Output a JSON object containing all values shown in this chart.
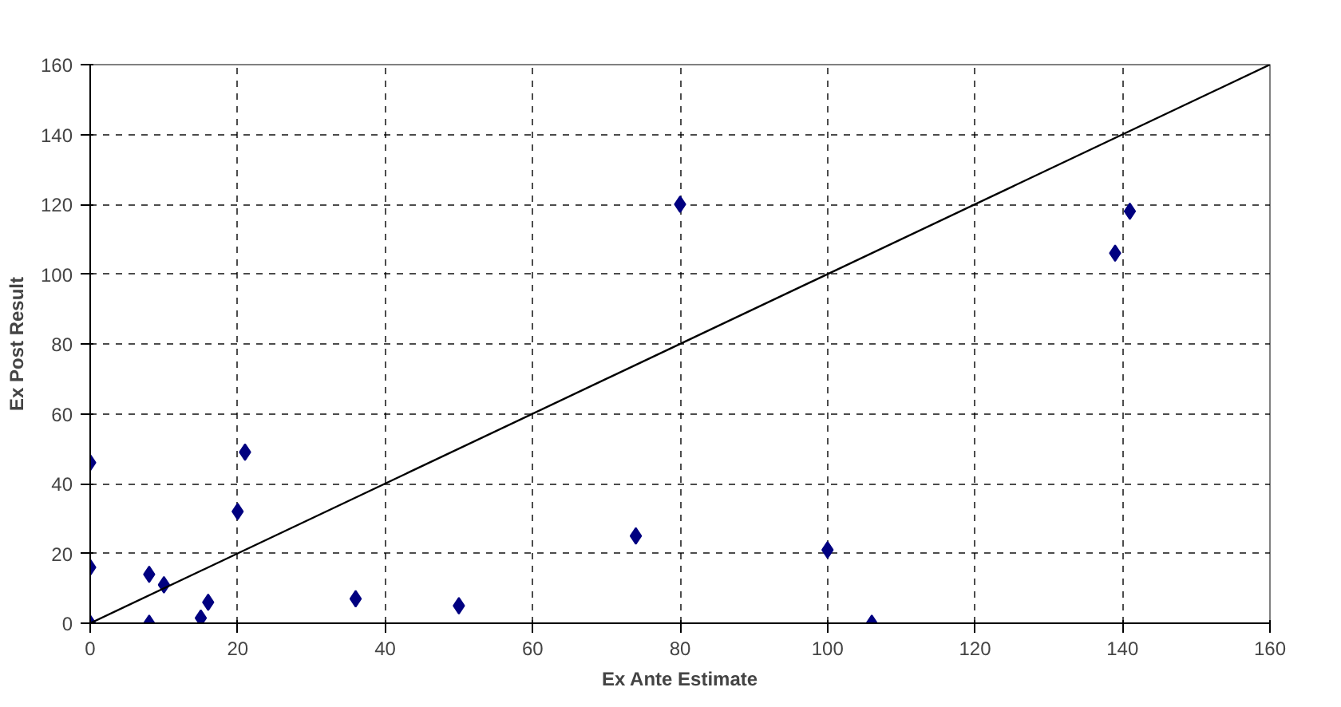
{
  "chart_data": {
    "type": "scatter",
    "xlabel": "Ex Ante Estimate",
    "ylabel": "Ex Post Result",
    "xlim": [
      0,
      160
    ],
    "ylim": [
      0,
      160
    ],
    "xticks": [
      0,
      20,
      40,
      60,
      80,
      100,
      120,
      140,
      160
    ],
    "yticks": [
      0,
      20,
      40,
      60,
      80,
      100,
      120,
      140,
      160
    ],
    "grid": true,
    "series": [
      {
        "marker": "diamond",
        "color": "#000080",
        "x": [
          0,
          0,
          0,
          8,
          8,
          10,
          15,
          16,
          20,
          21,
          36,
          50,
          74,
          80,
          100,
          106,
          139,
          141
        ],
        "values": [
          46,
          16,
          0,
          14,
          0,
          11,
          1.5,
          6,
          32,
          49,
          7,
          5,
          25,
          120,
          21,
          0,
          106,
          118
        ]
      },
      {
        "type": "line",
        "marker": "none",
        "color": "#000000",
        "x": [
          0,
          160
        ],
        "values": [
          0,
          160
        ]
      }
    ]
  }
}
